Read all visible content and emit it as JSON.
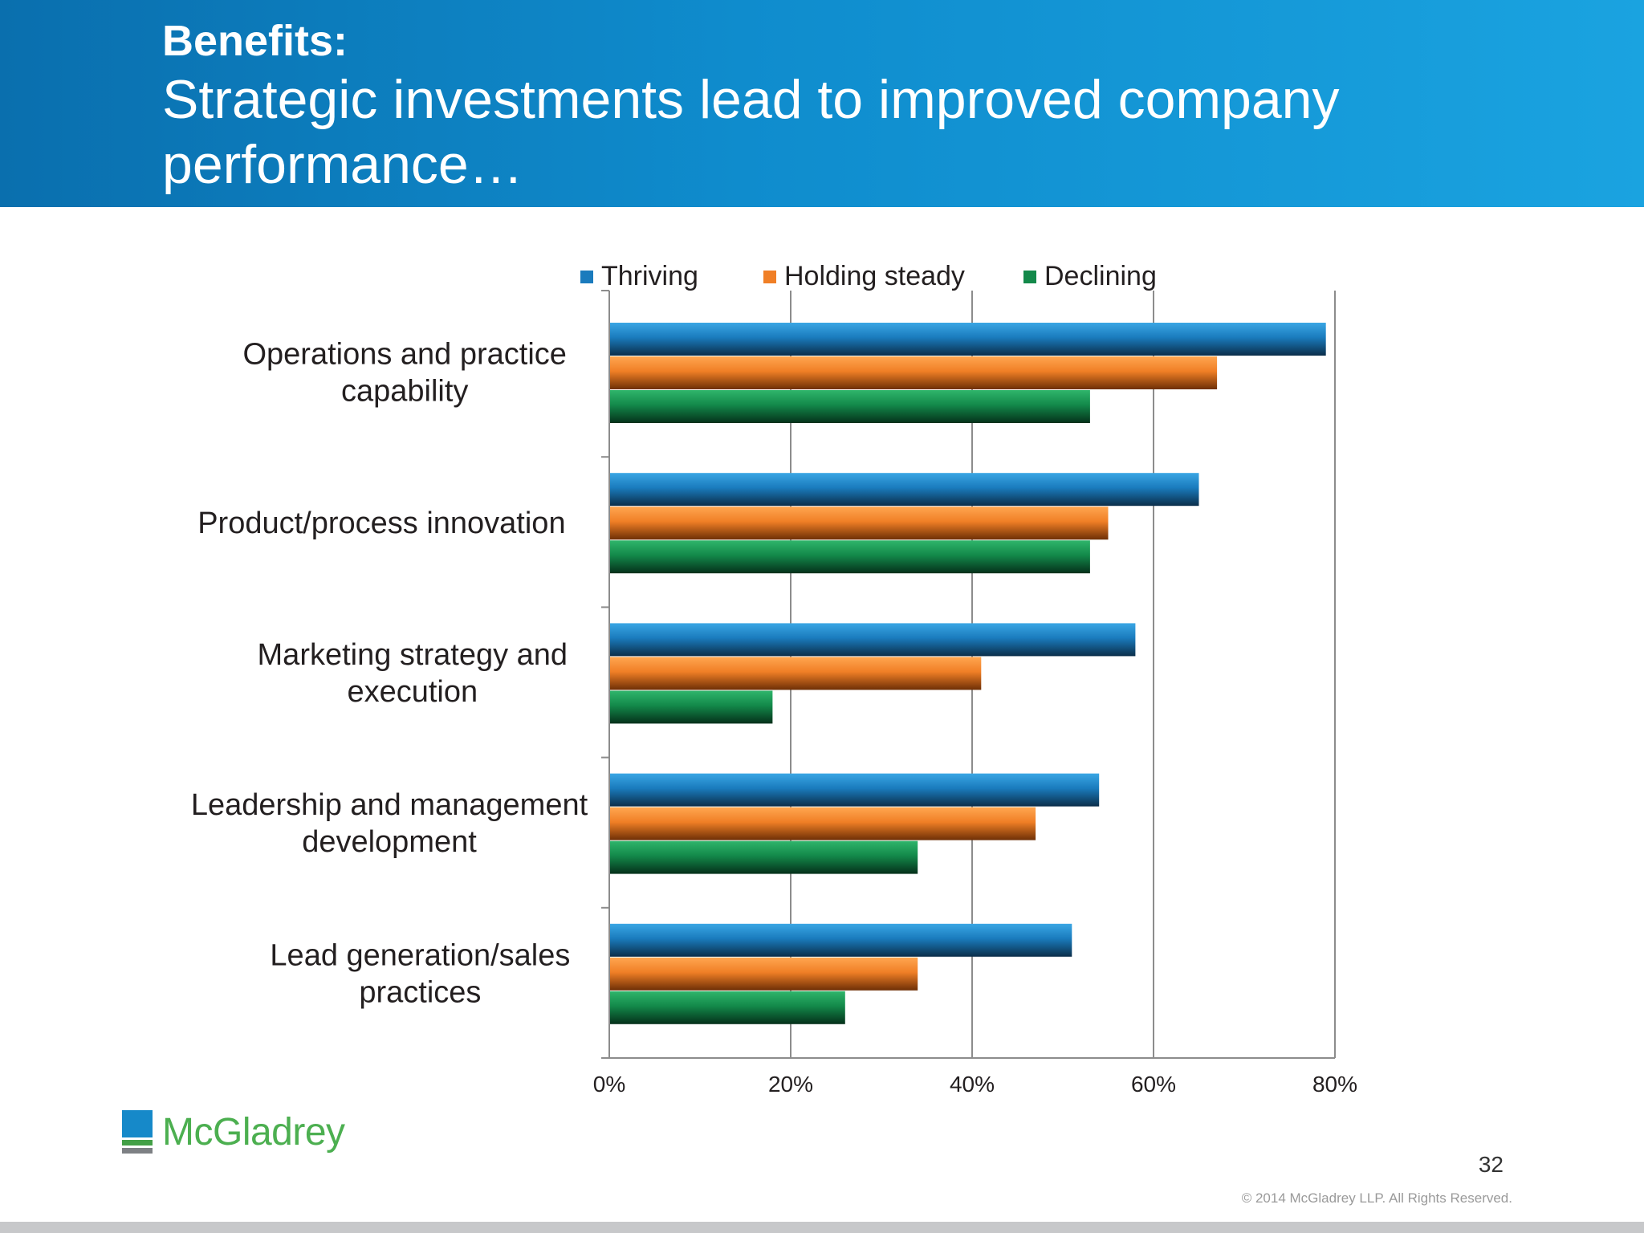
{
  "header": {
    "eyebrow": "Benefits:",
    "headline": "Strategic investments lead to improved company performance…"
  },
  "chart_data": {
    "type": "bar",
    "orientation": "horizontal",
    "categories": [
      "Operations and practice capability",
      "Product/process innovation",
      "Marketing strategy and execution",
      "Leadership and management development",
      "Lead generation/sales practices"
    ],
    "series": [
      {
        "name": "Thriving",
        "color": "#1a7bbd",
        "values": [
          79,
          65,
          58,
          54,
          51
        ]
      },
      {
        "name": "Holding steady",
        "color": "#f07f26",
        "values": [
          67,
          55,
          41,
          47,
          34
        ]
      },
      {
        "name": "Declining",
        "color": "#13894a",
        "values": [
          53,
          53,
          18,
          34,
          26
        ]
      }
    ],
    "xlim": [
      0,
      80
    ],
    "x_ticks": [
      "0%",
      "20%",
      "40%",
      "60%",
      "80%"
    ],
    "legend_position": "top",
    "grid": "vertical"
  },
  "footer": {
    "logo_text": "McGladrey",
    "page_number": "32",
    "copyright": "© 2014 McGladrey LLP. All Rights Reserved."
  }
}
